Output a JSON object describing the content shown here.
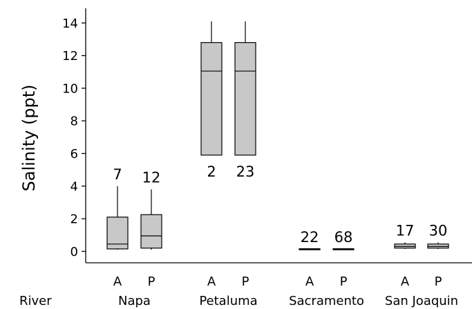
{
  "chart_data": {
    "type": "boxplot",
    "ylabel": "Salinity (ppt)",
    "ylim": [
      -0.7,
      14.9
    ],
    "yticks": [
      0,
      2,
      4,
      6,
      8,
      10,
      12,
      14
    ],
    "row_label": "River",
    "groups": [
      {
        "name": "Napa",
        "levels": [
          {
            "label": "A",
            "n": "7",
            "min": 0.1,
            "q1": 0.15,
            "median": 0.45,
            "q3": 2.1,
            "max": 4.0
          },
          {
            "label": "P",
            "n": "12",
            "min": 0.1,
            "q1": 0.2,
            "median": 0.95,
            "q3": 2.25,
            "max": 3.8
          }
        ]
      },
      {
        "name": "Petaluma",
        "levels": [
          {
            "label": "A",
            "n": "2",
            "min": 5.9,
            "q1": 5.9,
            "median": 11.05,
            "q3": 12.8,
            "max": 14.1
          },
          {
            "label": "P",
            "n": "23",
            "min": 5.9,
            "q1": 5.9,
            "median": 11.05,
            "q3": 12.8,
            "max": 14.1
          }
        ]
      },
      {
        "name": "Sacramento",
        "levels": [
          {
            "label": "A",
            "n": "22",
            "min": 0.1,
            "q1": 0.12,
            "median": 0.13,
            "q3": 0.14,
            "max": 0.15
          },
          {
            "label": "P",
            "n": "68",
            "min": 0.1,
            "q1": 0.12,
            "median": 0.13,
            "q3": 0.14,
            "max": 0.15
          }
        ]
      },
      {
        "name": "San Joaquin",
        "levels": [
          {
            "label": "A",
            "n": "17",
            "min": 0.15,
            "q1": 0.2,
            "median": 0.3,
            "q3": 0.45,
            "max": 0.55
          },
          {
            "label": "P",
            "n": "30",
            "min": 0.15,
            "q1": 0.2,
            "median": 0.3,
            "q3": 0.45,
            "max": 0.55
          }
        ]
      }
    ],
    "colors": {
      "box_fill": "#c8c8c8",
      "line": "#000000"
    },
    "grid": false
  }
}
